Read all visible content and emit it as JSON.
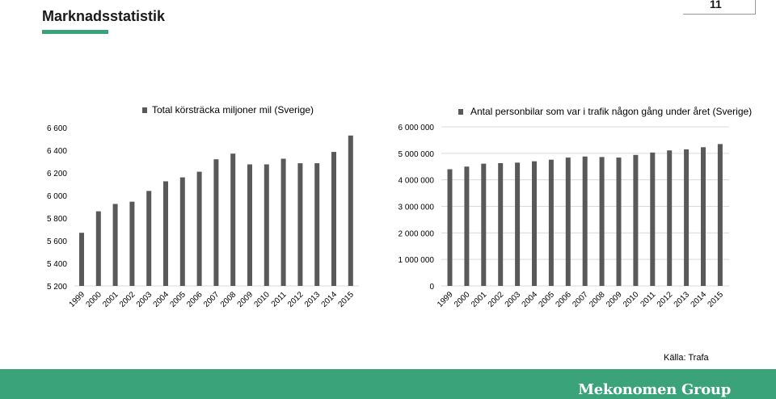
{
  "header": {
    "title": "Marknadsstatistik",
    "page_number": "11"
  },
  "colors": {
    "accent": "#3aa37a",
    "bar": "#595959"
  },
  "chart_data": [
    {
      "type": "bar",
      "legend": "Total körsträcka miljoner mil (Sverige)",
      "categories": [
        "1999",
        "2000",
        "2001",
        "2002",
        "2003",
        "2004",
        "2005",
        "2006",
        "2007",
        "2008",
        "2009",
        "2010",
        "2011",
        "2012",
        "2013",
        "2014",
        "2015"
      ],
      "values": [
        5670,
        5860,
        5925,
        5945,
        6040,
        6125,
        6160,
        6210,
        6320,
        6370,
        6275,
        6275,
        6325,
        6285,
        6285,
        6385,
        6530
      ],
      "ylim": [
        5200,
        6600
      ],
      "yticks": [
        "5 200",
        "5 400",
        "5 600",
        "5 800",
        "6 000",
        "6 200",
        "6 400",
        "6 600"
      ],
      "grid": false,
      "legend_position": "top"
    },
    {
      "type": "bar",
      "legend": "Antal personbilar som var i trafik någon gång under året (Sverige)",
      "categories": [
        "1999",
        "2000",
        "2001",
        "2002",
        "2003",
        "2004",
        "2005",
        "2006",
        "2007",
        "2008",
        "2009",
        "2010",
        "2011",
        "2012",
        "2013",
        "2014",
        "2015"
      ],
      "values": [
        4400000,
        4500000,
        4610000,
        4630000,
        4650000,
        4700000,
        4760000,
        4840000,
        4880000,
        4860000,
        4840000,
        4940000,
        5030000,
        5110000,
        5150000,
        5230000,
        5350000
      ],
      "ylim": [
        0,
        6000000
      ],
      "yticks": [
        "0",
        "1 000 000",
        "2 000 000",
        "3 000 000",
        "4 000 000",
        "5 000 000",
        "6 000 000"
      ],
      "grid": true,
      "legend_position": "top"
    }
  ],
  "source": "Källa: Trafa",
  "footer": {
    "brand": "Mekonomen Group"
  }
}
